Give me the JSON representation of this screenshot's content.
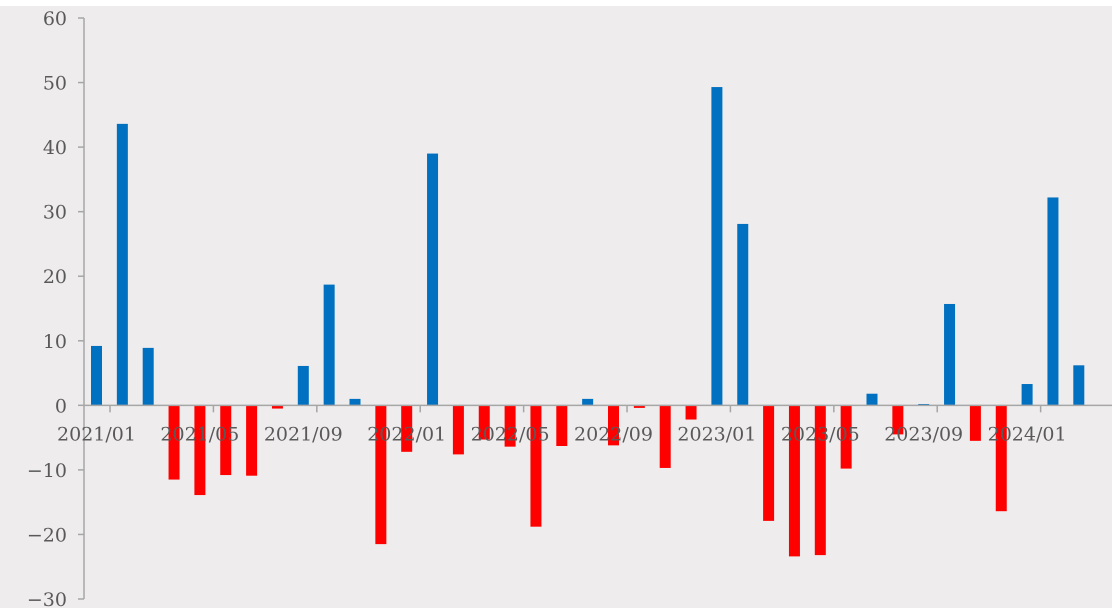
{
  "colors": {
    "background": "#eeeced",
    "positive": "#0070c0",
    "negative": "#ff0000",
    "axis": "#a6a6a6",
    "text": "#595959"
  },
  "chart_data": {
    "type": "bar",
    "title": "",
    "xlabel": "",
    "ylabel": "",
    "ylim": [
      -30,
      60
    ],
    "y_ticks": [
      -30,
      -20,
      -10,
      0,
      10,
      20,
      30,
      40,
      50,
      60
    ],
    "y_tick_labels": [
      "−30",
      "−20",
      "−10",
      "0",
      "10",
      "20",
      "30",
      "40",
      "50",
      "60"
    ],
    "grid": false,
    "categories": [
      "2021/01",
      "2021/02",
      "2021/03",
      "2021/04",
      "2021/05",
      "2021/06",
      "2021/07",
      "2021/08",
      "2021/09",
      "2021/10",
      "2021/11",
      "2021/12",
      "2022/01",
      "2022/02",
      "2022/03",
      "2022/04",
      "2022/05",
      "2022/06",
      "2022/07",
      "2022/08",
      "2022/09",
      "2022/10",
      "2022/11",
      "2022/12",
      "2023/01",
      "2023/02",
      "2023/03",
      "2023/04",
      "2023/05",
      "2023/06",
      "2023/07",
      "2023/08",
      "2023/09",
      "2023/10",
      "2023/11",
      "2023/12",
      "2024/01",
      "2024/02",
      "2024/03"
    ],
    "x_tick_labels": [
      "2021/01",
      "2021/05",
      "2021/09",
      "2022/01",
      "2022/05",
      "2022/09",
      "2023/01",
      "2023/05",
      "2023/09",
      "2024/01"
    ],
    "values": [
      9.2,
      43.6,
      8.9,
      -11.5,
      -13.9,
      -10.8,
      -10.9,
      -0.5,
      6.1,
      18.7,
      1.0,
      -21.5,
      -7.2,
      39.0,
      -7.6,
      -5.3,
      -6.4,
      -18.8,
      -6.3,
      1.0,
      -6.2,
      -0.4,
      -9.7,
      -2.2,
      49.3,
      28.1,
      -17.9,
      -23.4,
      -23.2,
      -9.8,
      1.8,
      -4.5,
      0.2,
      15.7,
      -5.5,
      -16.4,
      3.3,
      32.2,
      6.2
    ]
  }
}
